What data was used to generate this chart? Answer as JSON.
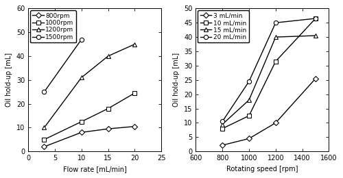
{
  "left": {
    "xlabel": "Flow rate [mL/min]",
    "ylabel": "Oil hold-up [mL]",
    "xlim": [
      0,
      25
    ],
    "ylim": [
      0,
      60
    ],
    "xticks": [
      0,
      5,
      10,
      15,
      20,
      25
    ],
    "yticks": [
      0,
      10,
      20,
      30,
      40,
      50,
      60
    ],
    "series": [
      {
        "label": "800rpm",
        "marker": "D",
        "filled": false,
        "x": [
          3,
          10,
          15,
          20
        ],
        "y": [
          2.0,
          8.0,
          9.5,
          10.5
        ]
      },
      {
        "label": "1000rpm",
        "marker": "s",
        "filled": false,
        "x": [
          3,
          10,
          15,
          20
        ],
        "y": [
          5.0,
          12.5,
          18.0,
          24.5
        ]
      },
      {
        "label": "1200rpm",
        "marker": "^",
        "filled": false,
        "x": [
          3,
          10,
          15,
          20
        ],
        "y": [
          10.0,
          31.0,
          40.0,
          45.0
        ]
      },
      {
        "label": "1500rpm",
        "marker": "o",
        "filled": false,
        "x": [
          3,
          10
        ],
        "y": [
          25.0,
          47.0
        ]
      }
    ]
  },
  "right": {
    "xlabel": "Rotating speed [rpm]",
    "ylabel": "Oil hold-up [mL]",
    "xlim": [
      600,
      1600
    ],
    "ylim": [
      0,
      50
    ],
    "xticks": [
      600,
      800,
      1000,
      1200,
      1400,
      1600
    ],
    "yticks": [
      0,
      5,
      10,
      15,
      20,
      25,
      30,
      35,
      40,
      45,
      50
    ],
    "series": [
      {
        "label": "3 mL/min",
        "marker": "D",
        "filled": false,
        "x": [
          800,
          1000,
          1200,
          1500
        ],
        "y": [
          2.2,
          4.5,
          10.0,
          25.5
        ]
      },
      {
        "label": "10 mL/min",
        "marker": "s",
        "filled": false,
        "x": [
          800,
          1000,
          1200,
          1500
        ],
        "y": [
          8.0,
          12.5,
          31.5,
          46.5
        ]
      },
      {
        "label": "15 mL/min",
        "marker": "^",
        "filled": false,
        "x": [
          800,
          1000,
          1200,
          1500
        ],
        "y": [
          9.5,
          18.0,
          40.0,
          40.5
        ]
      },
      {
        "label": "20 mL/min",
        "marker": "o",
        "filled": false,
        "x": [
          800,
          1000,
          1200,
          1500
        ],
        "y": [
          10.5,
          24.5,
          45.0,
          46.5
        ]
      }
    ]
  },
  "line_color": "#000000",
  "marker_fill_open": "#ffffff",
  "marker_size": 4.5,
  "linewidth": 1.0,
  "fontsize": 7,
  "legend_fontsize": 6.5
}
